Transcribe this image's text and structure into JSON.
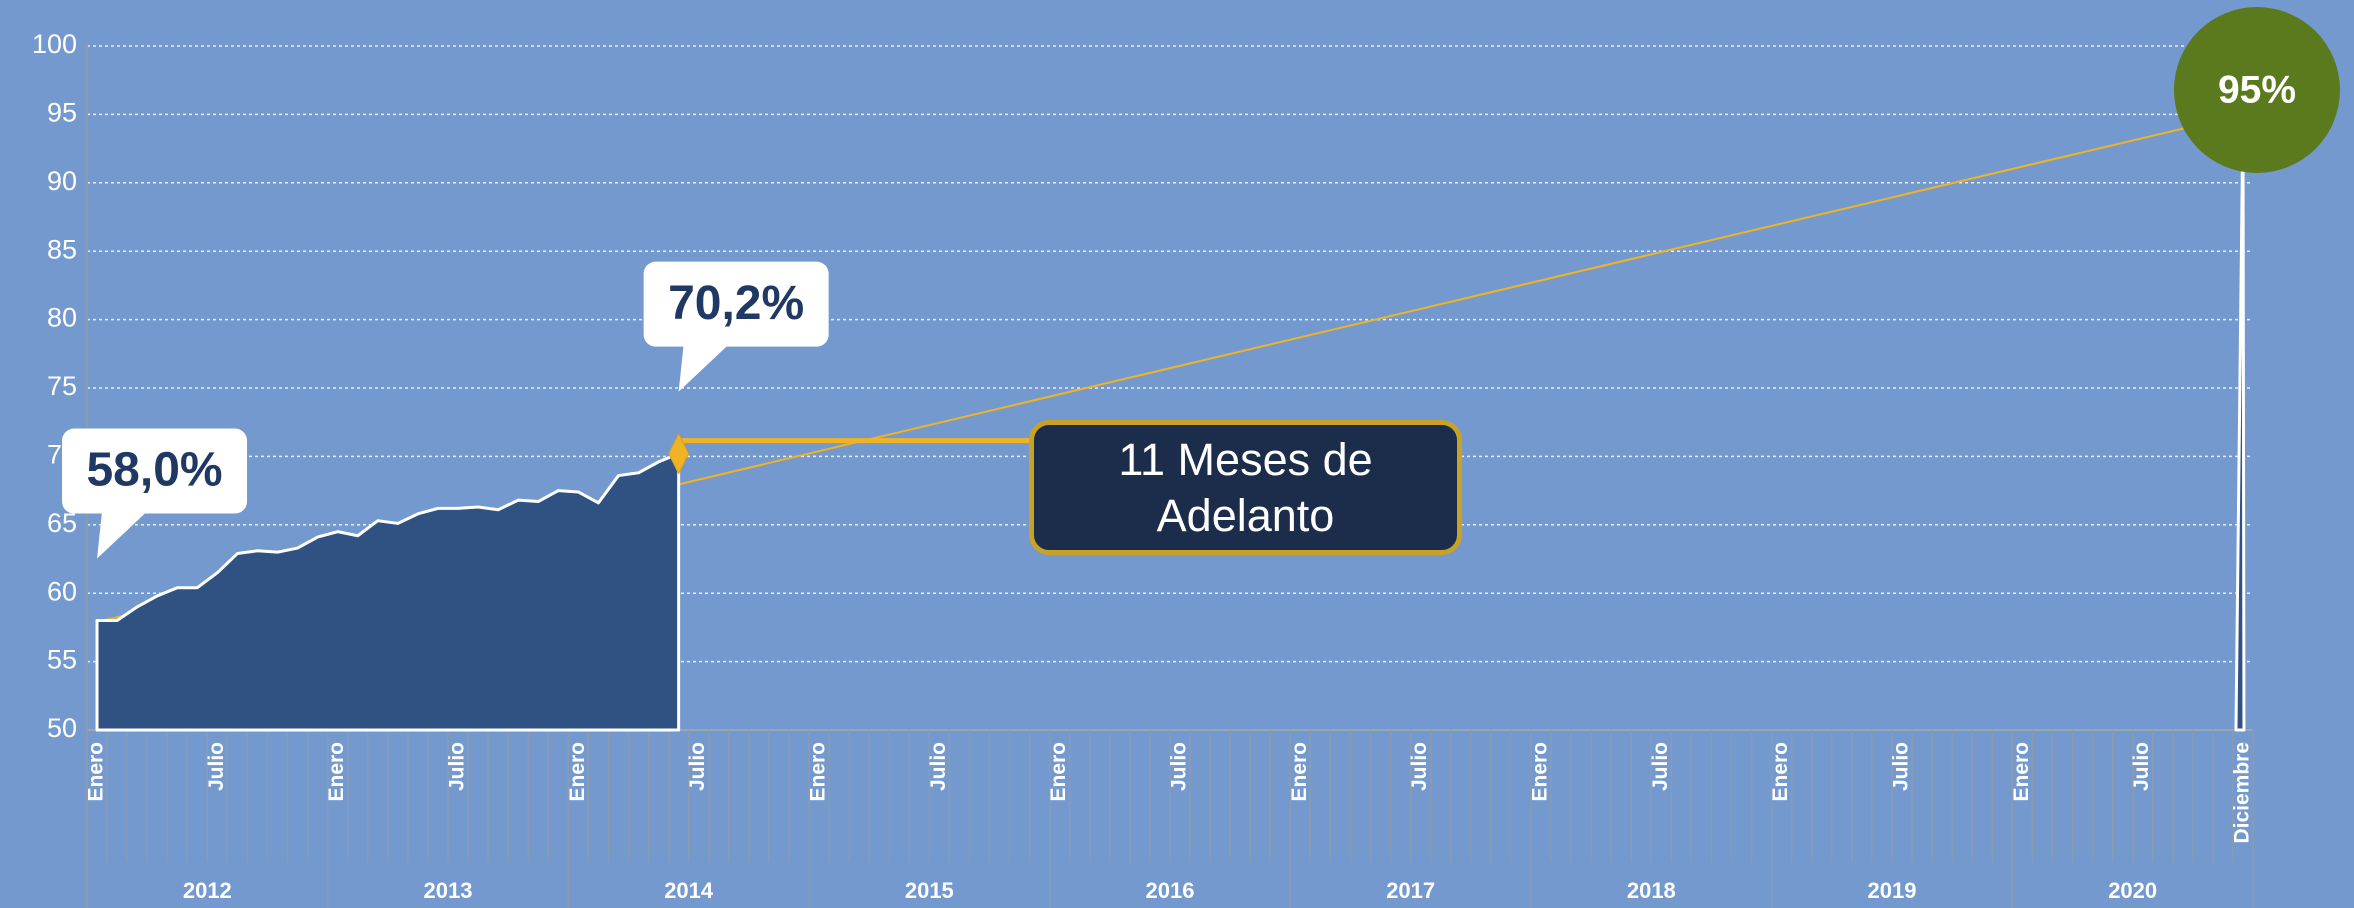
{
  "chart_data": {
    "type": "area",
    "categories": [
      "Enero",
      null,
      null,
      null,
      null,
      null,
      "Julio",
      null,
      null,
      null,
      null,
      null,
      "Enero",
      null,
      null,
      null,
      null,
      null,
      "Julio",
      null,
      null,
      null,
      null,
      null,
      "Enero",
      null,
      null,
      null,
      null,
      null,
      "Julio",
      null,
      null,
      null,
      null,
      null,
      "Enero",
      null,
      null,
      null,
      null,
      null,
      "Julio",
      null,
      null,
      null,
      null,
      null,
      "Enero",
      null,
      null,
      null,
      null,
      null,
      "Julio",
      null,
      null,
      null,
      null,
      null,
      "Enero",
      null,
      null,
      null,
      null,
      null,
      "Julio",
      null,
      null,
      null,
      null,
      null,
      "Enero",
      null,
      null,
      null,
      null,
      null,
      "Julio",
      null,
      null,
      null,
      null,
      null,
      "Enero",
      null,
      null,
      null,
      null,
      null,
      "Julio",
      null,
      null,
      null,
      null,
      null,
      "Enero",
      null,
      null,
      null,
      null,
      null,
      "Julio",
      null,
      null,
      null,
      null,
      "Diciembre"
    ],
    "year_labels": [
      "2012",
      "2013",
      "2014",
      "2015",
      "2016",
      "2017",
      "2018",
      "2019",
      "2020"
    ],
    "values": [
      58.0,
      58.0,
      59.0,
      59.8,
      60.4,
      60.4,
      61.5,
      62.9,
      63.1,
      63.0,
      63.3,
      64.1,
      64.5,
      64.2,
      65.3,
      65.1,
      65.8,
      66.2,
      66.2,
      66.3,
      66.1,
      66.8,
      66.7,
      67.5,
      67.4,
      66.6,
      68.6,
      68.8,
      69.6,
      70.2,
      null,
      null,
      null,
      null,
      null,
      null,
      null,
      null,
      null,
      null,
      null,
      null,
      null,
      null,
      null,
      null,
      null,
      null,
      null,
      null,
      null,
      null,
      null,
      null,
      null,
      null,
      null,
      null,
      null,
      null,
      null,
      null,
      null,
      null,
      null,
      null,
      null,
      null,
      null,
      null,
      null,
      null,
      null,
      null,
      null,
      null,
      null,
      null,
      null,
      null,
      null,
      null,
      null,
      null,
      null,
      null,
      null,
      null,
      null,
      null,
      null,
      null,
      null,
      null,
      null,
      null,
      null,
      null,
      null,
      null,
      null,
      null,
      null,
      null,
      null,
      null,
      null,
      95
    ],
    "value_labels": [
      "58,0%",
      null,
      null,
      null,
      null,
      null,
      null,
      null,
      null,
      null,
      null,
      null,
      null,
      null,
      null,
      null,
      null,
      null,
      null,
      null,
      null,
      null,
      null,
      null,
      null,
      null,
      null,
      null,
      null,
      "70,2%",
      null,
      null,
      null,
      null,
      null,
      null,
      null,
      null,
      null,
      null,
      null,
      null,
      null,
      null,
      null,
      null,
      null,
      null,
      null,
      null,
      null,
      null,
      null,
      null,
      null,
      null,
      null,
      null,
      null,
      null,
      null,
      null,
      null,
      null,
      null,
      null,
      null,
      null,
      null,
      null,
      null,
      null,
      null,
      null,
      null,
      null,
      null,
      null,
      null,
      null,
      null,
      null,
      null,
      null,
      null,
      null,
      null,
      null,
      null,
      null,
      null,
      null,
      null,
      null,
      null,
      null,
      null,
      null,
      null,
      null,
      null,
      null,
      null,
      null,
      null,
      null,
      null,
      "95%"
    ],
    "color": "#2f5282",
    "trend": {
      "color": "#f0b323",
      "values": [
        57.9,
        95.0
      ]
    },
    "annotation": "11 Meses de Adelanto",
    "ylim": [
      50,
      100
    ],
    "yticks": [
      50,
      55,
      60,
      65,
      70,
      75,
      80,
      85,
      90,
      95,
      100
    ],
    "grid": true
  }
}
